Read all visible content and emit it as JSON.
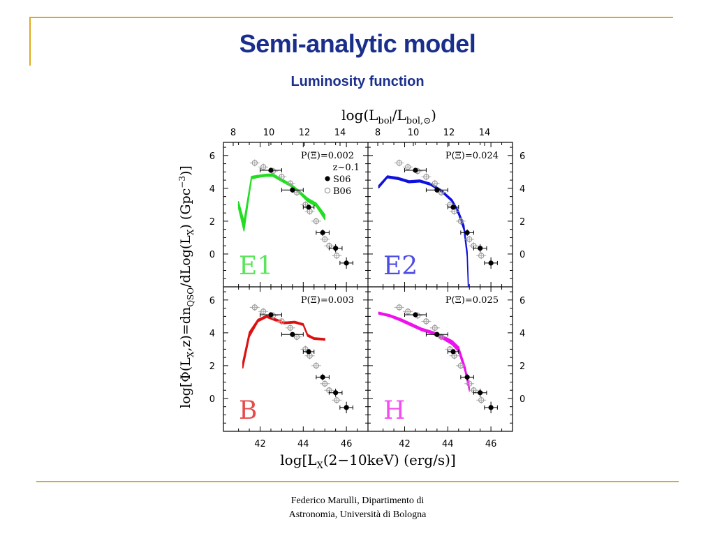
{
  "slide": {
    "title": "Semi-analytic model",
    "subtitle": "Luminosity function",
    "footer_line1": "Federico Marulli, Dipartimento di",
    "footer_line2": "Astronomia, Università di Bologna",
    "accent_color": "#e0a81c",
    "title_color": "#1a2f8c"
  },
  "chart_data": {
    "type": "line",
    "top_axis_label": "log(L_bol/L_bol,⊙)",
    "x_label": "log[L_X(2−10keV) (erg/s)]",
    "y_label": "log[Φ(L_X,z)=dn_QSO/dLog(L_X) (Gpc⁻³)]",
    "xlim": [
      40.3,
      47.0
    ],
    "ylim": [
      -2.0,
      6.8
    ],
    "x_ticks": [
      42,
      44,
      46
    ],
    "y_ticks": [
      0,
      2,
      4,
      6
    ],
    "top_ticks": [
      8,
      10,
      12,
      14
    ],
    "top_axis_conversion_note": "",
    "legend": {
      "redshift": "z~0.1",
      "entries": [
        "S06",
        "B06"
      ]
    },
    "obs_s06": [
      {
        "x": 42.5,
        "y": 5.1,
        "xerr": 0.5,
        "yerr": 0.15
      },
      {
        "x": 43.5,
        "y": 3.9,
        "xerr": 0.5,
        "yerr": 0.15
      },
      {
        "x": 44.25,
        "y": 2.85,
        "xerr": 0.25,
        "yerr": 0.15
      },
      {
        "x": 44.9,
        "y": 1.3,
        "xerr": 0.3,
        "yerr": 0.2
      },
      {
        "x": 45.5,
        "y": 0.35,
        "xerr": 0.3,
        "yerr": 0.25
      },
      {
        "x": 46.0,
        "y": -0.55,
        "xerr": 0.3,
        "yerr": 0.35
      }
    ],
    "obs_b06": [
      {
        "x": 41.75,
        "y": 5.55
      },
      {
        "x": 42.15,
        "y": 5.3
      },
      {
        "x": 42.6,
        "y": 5.05
      },
      {
        "x": 43.0,
        "y": 4.7
      },
      {
        "x": 43.4,
        "y": 4.3
      },
      {
        "x": 43.7,
        "y": 3.75
      },
      {
        "x": 44.1,
        "y": 3.0
      },
      {
        "x": 44.3,
        "y": 2.6
      },
      {
        "x": 44.6,
        "y": 2.0
      },
      {
        "x": 45.0,
        "y": 0.9
      },
      {
        "x": 45.2,
        "y": 0.5
      },
      {
        "x": 45.55,
        "y": -0.1
      }
    ],
    "panels": [
      {
        "label": "E1",
        "prob": "P(Ξ)=0.002",
        "color": "#22dd22",
        "show_legend": true,
        "band_x": [
          41.0,
          41.25,
          41.6,
          42.0,
          42.3,
          42.6,
          43.0,
          43.4,
          43.8,
          44.2,
          44.6,
          45.0
        ],
        "band_y": [
          3.0,
          1.7,
          4.65,
          4.75,
          4.8,
          4.8,
          4.5,
          4.2,
          3.8,
          3.3,
          3.0,
          2.25
        ],
        "band_w": [
          0.4,
          0.6,
          0.15,
          0.12,
          0.12,
          0.15,
          0.15,
          0.15,
          0.15,
          0.2,
          0.2,
          0.3
        ]
      },
      {
        "label": "E2",
        "prob": "P(Ξ)=0.024",
        "color": "#1111dd",
        "show_legend": false,
        "band_x": [
          40.8,
          41.2,
          41.7,
          42.2,
          42.7,
          43.2,
          43.7,
          44.2,
          44.5,
          44.75,
          44.9,
          44.95
        ],
        "band_y": [
          4.1,
          4.7,
          4.6,
          4.4,
          4.45,
          4.25,
          3.85,
          3.25,
          2.5,
          1.6,
          0.0,
          -1.9
        ],
        "band_w": [
          0.15,
          0.12,
          0.12,
          0.12,
          0.12,
          0.12,
          0.12,
          0.12,
          0.2,
          0.3,
          0.3,
          0.3
        ]
      },
      {
        "label": "B",
        "prob": "P(Ξ)=0.003",
        "color": "#dd1111",
        "show_legend": false,
        "band_x": [
          41.2,
          41.5,
          41.9,
          42.3,
          42.7,
          43.1,
          43.6,
          44.0,
          44.2,
          44.5,
          45.0
        ],
        "band_y": [
          2.05,
          3.9,
          4.75,
          5.0,
          4.8,
          4.6,
          4.65,
          4.5,
          3.85,
          3.65,
          3.6
        ],
        "band_w": [
          0.4,
          0.3,
          0.15,
          0.12,
          0.12,
          0.1,
          0.1,
          0.1,
          0.12,
          0.1,
          0.1
        ]
      },
      {
        "label": "H",
        "prob": "P(Ξ)=0.025",
        "color": "#ee11ee",
        "show_legend": false,
        "band_x": [
          40.8,
          41.3,
          41.8,
          42.3,
          42.8,
          43.3,
          43.8,
          44.2,
          44.5,
          44.8,
          45.0
        ],
        "band_y": [
          5.2,
          5.05,
          4.8,
          4.5,
          4.2,
          4.0,
          3.7,
          3.4,
          3.0,
          1.8,
          0.6
        ],
        "band_w": [
          0.12,
          0.12,
          0.15,
          0.15,
          0.15,
          0.15,
          0.2,
          0.25,
          0.3,
          0.3,
          0.3
        ]
      }
    ]
  }
}
